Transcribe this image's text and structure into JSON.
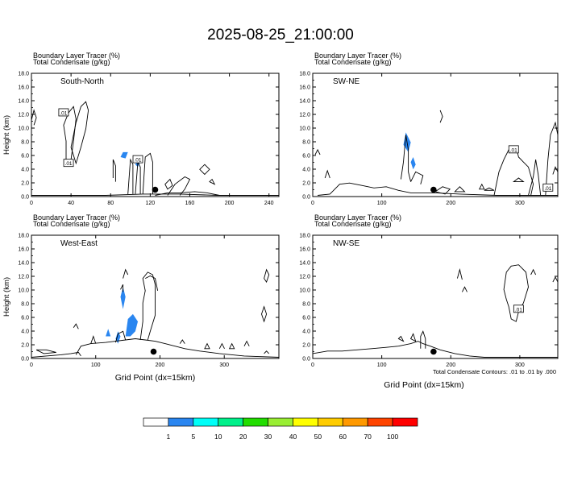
{
  "title": "2025-08-25_21:00:00",
  "footer": {
    "contour_note": "Total Condensate Contours: .01 to .01 by .000",
    "grid_label_right": "Grid Point (dx=15km)"
  },
  "colorbar": {
    "labels": [
      "1",
      "5",
      "10",
      "20",
      "30",
      "40",
      "50",
      "60",
      "70",
      "100"
    ],
    "colors": [
      "#ffffff",
      "#2a86f0",
      "#00fff8",
      "#00f08a",
      "#22dd00",
      "#99ee33",
      "#ffff00",
      "#ffcc00",
      "#ff9900",
      "#ff4400",
      "#ff0000"
    ]
  },
  "chart_data": [
    {
      "type": "contour",
      "panel_label": "South-North",
      "header1": "Boundary Layer Tracer   (%)",
      "header2": "Total Condensate   (g/kg)",
      "ylabel": "Height (km)",
      "xlabel": "",
      "ylim": [
        0,
        18
      ],
      "xlim": [
        0,
        250
      ],
      "xticks": [
        "0",
        "40",
        "80",
        "120",
        "160",
        "200",
        "240"
      ],
      "yticks": [
        "0.0",
        "2.0",
        "4.0",
        "6.0",
        "8.0",
        "10.0",
        "12.0",
        "14.0",
        "16.0",
        "18.0"
      ],
      "contour_labels": [
        ".01",
        ".01",
        ".01"
      ],
      "point_marker": {
        "x": 125,
        "y": 1.0
      }
    },
    {
      "type": "contour",
      "panel_label": "SW-NE",
      "header1": "Boundary Layer Tracer   (%)",
      "header2": "Total Condensate   (g/kg)",
      "ylabel": "",
      "xlabel": "",
      "ylim": [
        0,
        18
      ],
      "xlim": [
        0,
        355
      ],
      "xticks": [
        "0",
        "100",
        "200",
        "300"
      ],
      "yticks": [
        "0.0",
        "2.0",
        "4.0",
        "6.0",
        "8.0",
        "10.0",
        "12.0",
        "14.0",
        "16.0",
        "18.0"
      ],
      "contour_labels": [
        ".01",
        ".01"
      ],
      "point_marker": {
        "x": 175,
        "y": 1.0
      }
    },
    {
      "type": "contour",
      "panel_label": "West-East",
      "header1": "Boundary Layer Tracer   (%)",
      "header2": "Total Condensate   (g/kg)",
      "ylabel": "Height (km)",
      "xlabel": "Grid Point (dx=15km)",
      "ylim": [
        0,
        18
      ],
      "xlim": [
        0,
        385
      ],
      "xticks": [
        "0",
        "100",
        "200",
        "300"
      ],
      "yticks": [
        "0.0",
        "2.0",
        "4.0",
        "6.0",
        "8.0",
        "10.0",
        "12.0",
        "14.0",
        "16.0",
        "18.0"
      ],
      "contour_labels": [],
      "point_marker": {
        "x": 190,
        "y": 1.0
      }
    },
    {
      "type": "contour",
      "panel_label": "NW-SE",
      "header1": "Boundary Layer Tracer   (%)",
      "header2": "Total Condensate   (g/kg)",
      "ylabel": "",
      "xlabel": "",
      "ylim": [
        0,
        18
      ],
      "xlim": [
        0,
        355
      ],
      "xticks": [
        "0",
        "100",
        "200",
        "300"
      ],
      "yticks": [
        "0.0",
        "2.0",
        "4.0",
        "6.0",
        "8.0",
        "10.0",
        "12.0",
        "14.0",
        "16.0",
        "18.0"
      ],
      "contour_labels": [
        ".01"
      ],
      "point_marker": {
        "x": 175,
        "y": 1.0
      }
    }
  ]
}
